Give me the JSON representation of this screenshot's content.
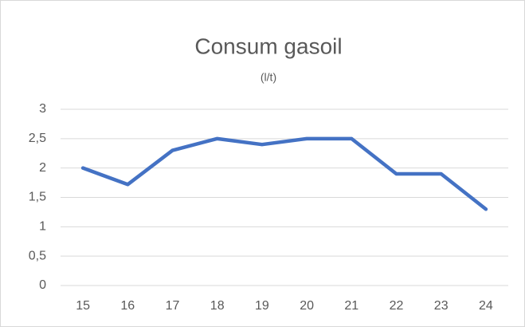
{
  "chart_data": {
    "type": "line",
    "title": "Consum gasoil",
    "subtitle": "(l/t)",
    "categories": [
      "15",
      "16",
      "17",
      "18",
      "19",
      "20",
      "21",
      "22",
      "23",
      "24"
    ],
    "series": [
      {
        "name": "Consum gasoil",
        "color": "#4472c4",
        "values": [
          2,
          1.72,
          2.3,
          2.5,
          2.4,
          2.5,
          2.5,
          1.9,
          1.9,
          1.3
        ]
      }
    ],
    "ylim": [
      0,
      3
    ],
    "yticks": [
      0,
      {
        "value": 0.5,
        "label": "0,5"
      },
      1,
      {
        "value": 1.5,
        "label": "1,5"
      },
      2,
      {
        "value": 2.5,
        "label": "2,5"
      },
      3
    ],
    "grid": true
  }
}
